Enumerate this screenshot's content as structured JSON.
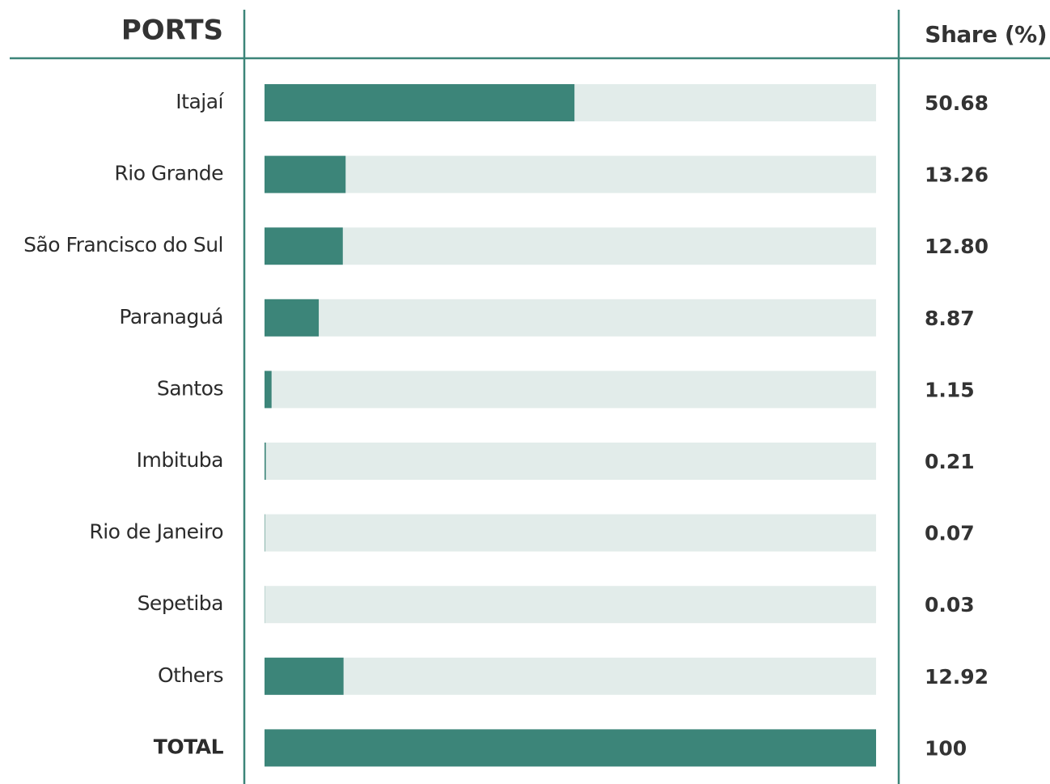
{
  "chart_data": {
    "type": "bar",
    "header": {
      "category": "PORTS",
      "value": "Share (%)"
    },
    "categories": [
      "Itajaí",
      "Rio Grande",
      "São Francisco do Sul",
      "Paranaguá",
      "Santos",
      "Imbituba",
      "Rio de Janeiro",
      "Sepetiba",
      "Others"
    ],
    "values": [
      50.68,
      13.26,
      12.8,
      8.87,
      1.15,
      0.21,
      0.07,
      0.03,
      12.92
    ],
    "value_labels": [
      "50.68",
      "13.26",
      "12.80",
      "8.87",
      "1.15",
      "0.21",
      "0.07",
      "0.03",
      "12.92"
    ],
    "total": {
      "label": "TOTAL",
      "value": 100
    },
    "xlim": [
      0,
      100
    ],
    "color": "#3c8579",
    "track_color": "#e2ecea"
  }
}
